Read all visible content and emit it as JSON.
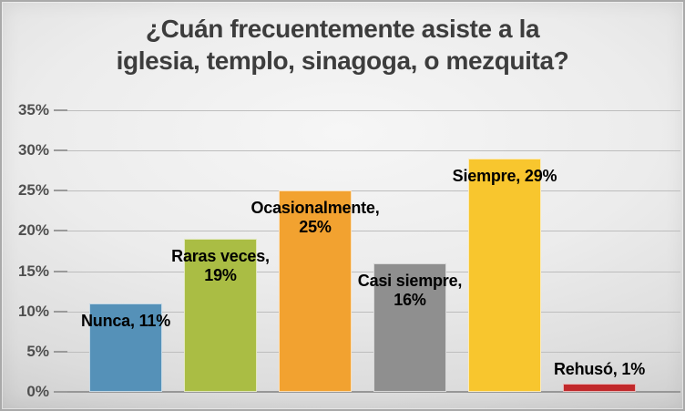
{
  "title": "¿Cuán frecuentemente asiste a la\niglesia, templo, sinagoga, o mezquita?",
  "chart_data": {
    "type": "bar",
    "title": "¿Cuán frecuentemente asiste a la iglesia, templo, sinagoga, o mezquita?",
    "categories": [
      "Nunca",
      "Raras veces",
      "Ocasionalmente",
      "Casi siempre",
      "Siempre",
      "Rehusó"
    ],
    "values": [
      11,
      19,
      25,
      16,
      29,
      1
    ],
    "data_labels": [
      "Nunca, 11%",
      "Raras veces,\n19%",
      "Ocasionalmente,\n25%",
      "Casi siempre,\n16%",
      "Siempre, 29%",
      "Rehusó, 1%"
    ],
    "bar_colors": [
      "#5591b8",
      "#aabd44",
      "#f2a230",
      "#8f8f8f",
      "#f8c62e",
      "#c1292b"
    ],
    "xlabel": "",
    "ylabel": "",
    "ylim": [
      0,
      35
    ],
    "y_tick_values": [
      0,
      5,
      10,
      15,
      20,
      25,
      30,
      35
    ],
    "y_ticks": [
      "0%",
      "5%",
      "10%",
      "15%",
      "20%",
      "25%",
      "30%",
      "35%"
    ],
    "grid": true,
    "legend": false,
    "label_position_rule": "inside-top, except values <= 1% placed above bar"
  },
  "colors": {
    "title_text": "#3d3d3d",
    "axis_text": "#4f4f4f",
    "gridline": "#bdbdbd",
    "baseline": "#979797",
    "data_label_text": "#000000",
    "background_center": "#f6f6f6",
    "background_edge": "#c0c0c0"
  }
}
